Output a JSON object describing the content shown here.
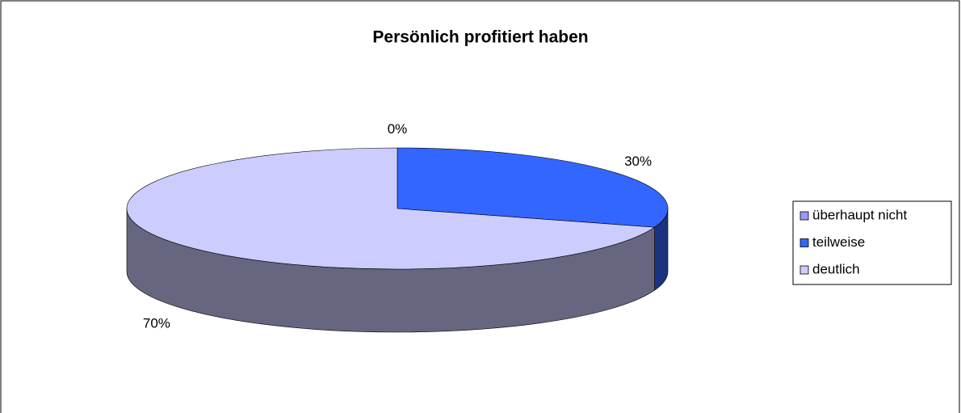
{
  "chart_data": {
    "type": "pie3d",
    "title": "Persönlich profitiert haben",
    "categories": [
      "überhaupt nicht",
      "teilweise",
      "deutlich"
    ],
    "values": [
      0,
      30,
      70
    ],
    "value_labels": [
      "0%",
      "30%",
      "70%"
    ],
    "colors": [
      "#9999ff",
      "#3366ff",
      "#ccccff"
    ],
    "legend": "right"
  }
}
